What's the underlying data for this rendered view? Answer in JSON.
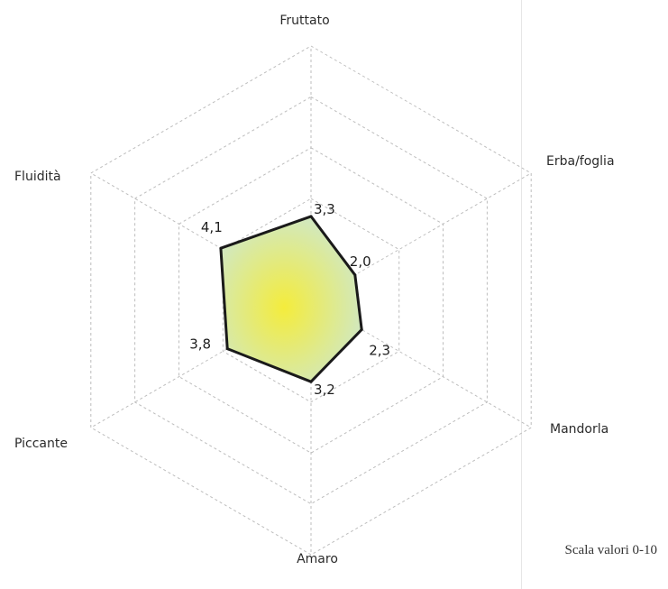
{
  "chart_data": {
    "type": "radar",
    "scale_min": 0,
    "scale_max": 10,
    "grid": true,
    "categories": [
      "Fruttato",
      "Erba/foglia",
      "Mandorla",
      "Amaro",
      "Piccante",
      "Fluidità"
    ],
    "values": [
      3.3,
      2.0,
      2.3,
      3.2,
      3.8,
      4.1
    ],
    "value_labels": [
      "3,3",
      "2,0",
      "2,3",
      "3,2",
      "3,8",
      "4,1"
    ],
    "note": "Scala valori 0-10"
  },
  "colors": {
    "fill_center": "#f4ec3c",
    "fill_edge": "#cfe8c8",
    "outline": "#1a1a1a",
    "grid": "#bdbdbd"
  }
}
